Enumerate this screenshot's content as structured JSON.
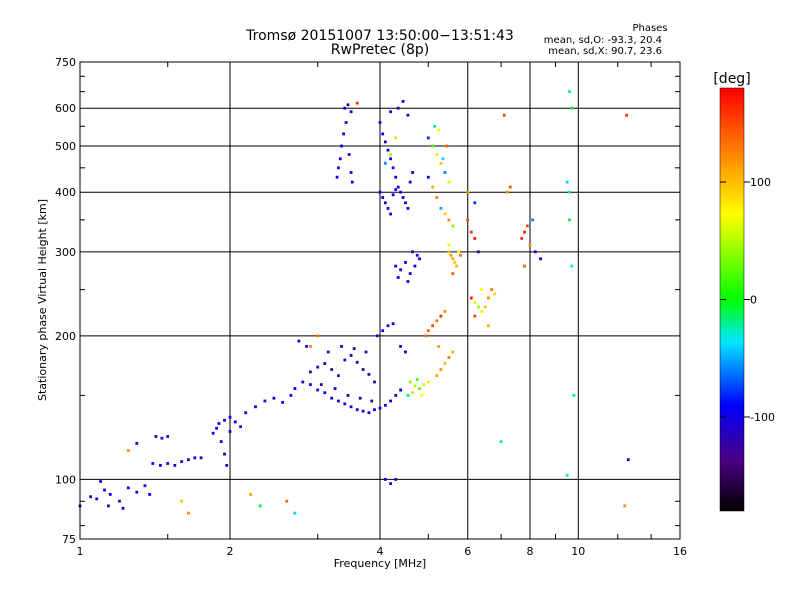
{
  "chart_data": {
    "type": "scatter",
    "title": "Tromsø 20151007 13:50:00−13:51:43",
    "subtitle": "RwPretec (8p)",
    "info": {
      "heading": "Phases",
      "line1": "mean, sd,O:  -93.3, 20.4",
      "line2": "mean, sd,X:  90.7, 23.6"
    },
    "xlabel": "Frequency [MHz]",
    "ylabel": "Stationary phase Virtual Height [km]",
    "x_scale": "log",
    "y_scale": "log",
    "xlim": [
      1,
      16
    ],
    "ylim": [
      75,
      750
    ],
    "xticks": [
      1,
      2,
      4,
      6,
      8,
      10,
      16
    ],
    "yticks": [
      75,
      100,
      200,
      300,
      400,
      500,
      600,
      750
    ],
    "grid": true,
    "colorbar": {
      "label": "[deg]",
      "range": [
        -180,
        180
      ],
      "ticks": [
        100,
        0,
        -100
      ]
    },
    "series": [
      {
        "points": [
          [
            1.05,
            92,
            -100
          ],
          [
            1.08,
            91,
            -98
          ],
          [
            1.12,
            95,
            -102
          ],
          [
            1.15,
            93,
            -96
          ],
          [
            1.2,
            90,
            -110
          ],
          [
            1.25,
            96,
            -95
          ],
          [
            1.3,
            94,
            -100
          ],
          [
            1.35,
            97,
            -105
          ],
          [
            1.38,
            93,
            -98
          ],
          [
            1.1,
            99,
            -100
          ],
          [
            1.14,
            88,
            -104
          ],
          [
            1.22,
            87,
            -92
          ],
          [
            1.4,
            108,
            -100
          ],
          [
            1.45,
            107,
            -98
          ],
          [
            1.5,
            108,
            -103
          ],
          [
            1.55,
            107,
            -105
          ],
          [
            1.6,
            109,
            -100
          ],
          [
            1.65,
            110,
            -99
          ],
          [
            1.7,
            111,
            -97
          ],
          [
            1.75,
            111,
            -102
          ],
          [
            1.42,
            123,
            -105
          ],
          [
            1.46,
            122,
            -110
          ],
          [
            1.5,
            123,
            -95
          ],
          [
            1.3,
            119,
            -100
          ],
          [
            1.85,
            125,
            -100
          ],
          [
            1.88,
            128,
            -98
          ],
          [
            1.9,
            131,
            -103
          ],
          [
            1.95,
            133,
            -100
          ],
          [
            2.0,
            135,
            -105
          ],
          [
            2.05,
            132,
            -97
          ],
          [
            2.1,
            129,
            -100
          ],
          [
            2.0,
            126,
            -99
          ],
          [
            1.92,
            120,
            -101
          ],
          [
            1.95,
            113,
            -96
          ],
          [
            1.97,
            107,
            -104
          ],
          [
            2.15,
            138,
            -100
          ],
          [
            2.25,
            142,
            -98
          ],
          [
            2.35,
            146,
            -103
          ],
          [
            2.45,
            148,
            -100
          ],
          [
            2.55,
            145,
            -105
          ],
          [
            2.65,
            150,
            -98
          ],
          [
            2.7,
            155,
            -95
          ],
          [
            2.8,
            160,
            -102
          ],
          [
            2.9,
            158,
            -100
          ],
          [
            3.0,
            154,
            -110
          ],
          [
            3.1,
            152,
            -98
          ],
          [
            3.2,
            148,
            -100
          ],
          [
            3.3,
            146,
            -103
          ],
          [
            3.4,
            144,
            -101
          ],
          [
            3.5,
            142,
            -96
          ],
          [
            3.6,
            140,
            -99
          ],
          [
            3.7,
            139,
            -104
          ],
          [
            3.8,
            138,
            -100
          ],
          [
            3.9,
            140,
            -97
          ],
          [
            4.0,
            141,
            -102
          ],
          [
            4.1,
            143,
            -98
          ],
          [
            4.2,
            146,
            -100
          ],
          [
            4.3,
            150,
            -105
          ],
          [
            4.4,
            154,
            -99
          ],
          [
            2.9,
            168,
            -120
          ],
          [
            3.0,
            172,
            -125
          ],
          [
            3.1,
            175,
            -118
          ],
          [
            3.2,
            170,
            -122
          ],
          [
            3.3,
            165,
            -128
          ],
          [
            3.4,
            178,
            -118
          ],
          [
            3.5,
            182,
            -124
          ],
          [
            3.6,
            176,
            -119
          ],
          [
            3.7,
            170,
            -126
          ],
          [
            3.8,
            166,
            -121
          ],
          [
            3.9,
            160,
            -117
          ],
          [
            3.05,
            158,
            -125
          ],
          [
            3.25,
            155,
            -120
          ],
          [
            3.45,
            150,
            -124
          ],
          [
            3.65,
            148,
            -118
          ],
          [
            3.85,
            146,
            -122
          ],
          [
            3.15,
            185,
            -115
          ],
          [
            3.35,
            190,
            -112
          ],
          [
            3.55,
            188,
            -118
          ],
          [
            3.75,
            185,
            -114
          ],
          [
            2.75,
            195,
            -105
          ],
          [
            2.85,
            190,
            -100
          ],
          [
            3.95,
            200,
            -100
          ],
          [
            4.05,
            205,
            -98
          ],
          [
            4.15,
            210,
            -102
          ],
          [
            4.25,
            212,
            -99
          ],
          [
            4.4,
            190,
            -96
          ],
          [
            4.5,
            185,
            -101
          ],
          [
            4.6,
            160,
            40
          ],
          [
            4.7,
            157,
            50
          ],
          [
            4.8,
            155,
            30
          ],
          [
            4.9,
            158,
            60
          ],
          [
            5.0,
            160,
            80
          ],
          [
            4.75,
            162,
            20
          ],
          [
            4.65,
            152,
            90
          ],
          [
            4.55,
            150,
            -20
          ],
          [
            4.85,
            150,
            70
          ],
          [
            5.2,
            165,
            110
          ],
          [
            5.3,
            170,
            120
          ],
          [
            5.4,
            175,
            100
          ],
          [
            5.5,
            180,
            130
          ],
          [
            5.6,
            185,
            105
          ],
          [
            5.25,
            190,
            115
          ],
          [
            5.0,
            205,
            140
          ],
          [
            5.1,
            210,
            150
          ],
          [
            5.2,
            215,
            130
          ],
          [
            5.3,
            220,
            160
          ],
          [
            5.4,
            225,
            120
          ],
          [
            4.95,
            200,
            135
          ],
          [
            3.4,
            600,
            -100
          ],
          [
            3.45,
            610,
            -103
          ],
          [
            3.5,
            590,
            -97
          ],
          [
            3.42,
            560,
            -100
          ],
          [
            3.38,
            530,
            -105
          ],
          [
            3.35,
            500,
            -98
          ],
          [
            3.33,
            470,
            -102
          ],
          [
            3.3,
            450,
            -100
          ],
          [
            3.28,
            430,
            -96
          ],
          [
            3.47,
            480,
            -104
          ],
          [
            3.5,
            440,
            -99
          ],
          [
            3.52,
            420,
            -101
          ],
          [
            4.0,
            560,
            -100
          ],
          [
            4.05,
            530,
            -95
          ],
          [
            4.1,
            510,
            -105
          ],
          [
            4.15,
            490,
            -98
          ],
          [
            4.2,
            470,
            -102
          ],
          [
            4.25,
            450,
            -100
          ],
          [
            4.3,
            430,
            -97
          ],
          [
            4.35,
            410,
            -103
          ],
          [
            4.4,
            400,
            -100
          ],
          [
            4.45,
            390,
            -96
          ],
          [
            4.5,
            380,
            -104
          ],
          [
            4.55,
            370,
            -99
          ],
          [
            4.6,
            420,
            -101
          ],
          [
            4.65,
            440,
            -98
          ],
          [
            4.0,
            400,
            -100
          ],
          [
            4.05,
            390,
            -95
          ],
          [
            4.1,
            380,
            -105
          ],
          [
            4.15,
            370,
            -98
          ],
          [
            4.2,
            360,
            -102
          ],
          [
            4.25,
            395,
            -100
          ],
          [
            4.3,
            405,
            -97
          ],
          [
            4.1,
            460,
            -60
          ],
          [
            4.2,
            480,
            40
          ],
          [
            4.3,
            520,
            90
          ],
          [
            4.35,
            600,
            -100
          ],
          [
            4.45,
            620,
            -110
          ],
          [
            4.55,
            580,
            -98
          ],
          [
            4.2,
            590,
            -100
          ],
          [
            4.3,
            280,
            -100
          ],
          [
            4.4,
            275,
            -98
          ],
          [
            4.5,
            285,
            -103
          ],
          [
            4.6,
            270,
            -100
          ],
          [
            4.7,
            280,
            -105
          ],
          [
            4.8,
            290,
            -97
          ],
          [
            4.35,
            265,
            -100
          ],
          [
            4.55,
            260,
            -99
          ],
          [
            4.65,
            300,
            -102
          ],
          [
            4.75,
            295,
            -98
          ],
          [
            5.0,
            520,
            -80
          ],
          [
            5.1,
            500,
            20
          ],
          [
            5.2,
            480,
            60
          ],
          [
            5.3,
            460,
            100
          ],
          [
            5.4,
            440,
            -60
          ],
          [
            5.5,
            420,
            80
          ],
          [
            5.0,
            430,
            -90
          ],
          [
            5.1,
            410,
            110
          ],
          [
            5.2,
            390,
            130
          ],
          [
            5.3,
            370,
            -50
          ],
          [
            5.4,
            360,
            90
          ],
          [
            5.5,
            350,
            120
          ],
          [
            5.6,
            340,
            40
          ],
          [
            5.15,
            550,
            -20
          ],
          [
            5.25,
            540,
            70
          ],
          [
            5.35,
            470,
            -40
          ],
          [
            5.45,
            500,
            140
          ],
          [
            5.5,
            300,
            100
          ],
          [
            5.55,
            295,
            120
          ],
          [
            5.6,
            290,
            110
          ],
          [
            5.65,
            285,
            95
          ],
          [
            5.7,
            280,
            105
          ],
          [
            5.75,
            300,
            80
          ],
          [
            5.8,
            295,
            130
          ],
          [
            5.5,
            310,
            60
          ],
          [
            5.6,
            270,
            140
          ],
          [
            6.0,
            350,
            150
          ],
          [
            6.1,
            330,
            160
          ],
          [
            6.2,
            320,
            170
          ],
          [
            6.3,
            300,
            -120
          ],
          [
            6.0,
            400,
            120
          ],
          [
            6.2,
            380,
            -80
          ],
          [
            6.1,
            240,
            170
          ],
          [
            6.2,
            235,
            80
          ],
          [
            6.3,
            230,
            40
          ],
          [
            6.4,
            225,
            60
          ],
          [
            6.5,
            230,
            100
          ],
          [
            6.6,
            240,
            120
          ],
          [
            6.7,
            250,
            130
          ],
          [
            6.8,
            245,
            90
          ],
          [
            6.2,
            220,
            150
          ],
          [
            6.4,
            250,
            70
          ],
          [
            6.6,
            210,
            110
          ],
          [
            7.7,
            320,
            160
          ],
          [
            7.8,
            330,
            170
          ],
          [
            7.9,
            340,
            150
          ],
          [
            8.0,
            310,
            120
          ],
          [
            8.2,
            300,
            -100
          ],
          [
            8.4,
            290,
            -98
          ],
          [
            7.8,
            280,
            140
          ],
          [
            8.1,
            350,
            -60
          ],
          [
            7.2,
            400,
            120
          ],
          [
            7.3,
            410,
            140
          ],
          [
            7.0,
            120,
            -30
          ],
          [
            7.1,
            580,
            150
          ],
          [
            9.6,
            650,
            -20
          ],
          [
            9.7,
            600,
            -10
          ],
          [
            9.5,
            420,
            -40
          ],
          [
            9.6,
            350,
            -10
          ],
          [
            9.7,
            280,
            -30
          ],
          [
            9.8,
            150,
            -20
          ],
          [
            9.5,
            102,
            -30
          ],
          [
            9.6,
            400,
            -25
          ],
          [
            12.5,
            580,
            160
          ],
          [
            12.6,
            110,
            -100
          ],
          [
            12.4,
            88,
            120
          ],
          [
            1.25,
            115,
            120
          ],
          [
            1.6,
            90,
            100
          ],
          [
            1.65,
            85,
            120
          ],
          [
            2.2,
            93,
            110
          ],
          [
            2.3,
            88,
            -10
          ],
          [
            2.6,
            90,
            140
          ],
          [
            2.7,
            85,
            -40
          ],
          [
            2.9,
            190,
            120
          ],
          [
            3.0,
            200,
            130
          ],
          [
            3.6,
            615,
            160
          ],
          [
            4.1,
            100,
            -90
          ],
          [
            4.3,
            100,
            -120
          ],
          [
            4.2,
            98,
            -100
          ],
          [
            1.0,
            88,
            -100
          ]
        ]
      }
    ]
  }
}
